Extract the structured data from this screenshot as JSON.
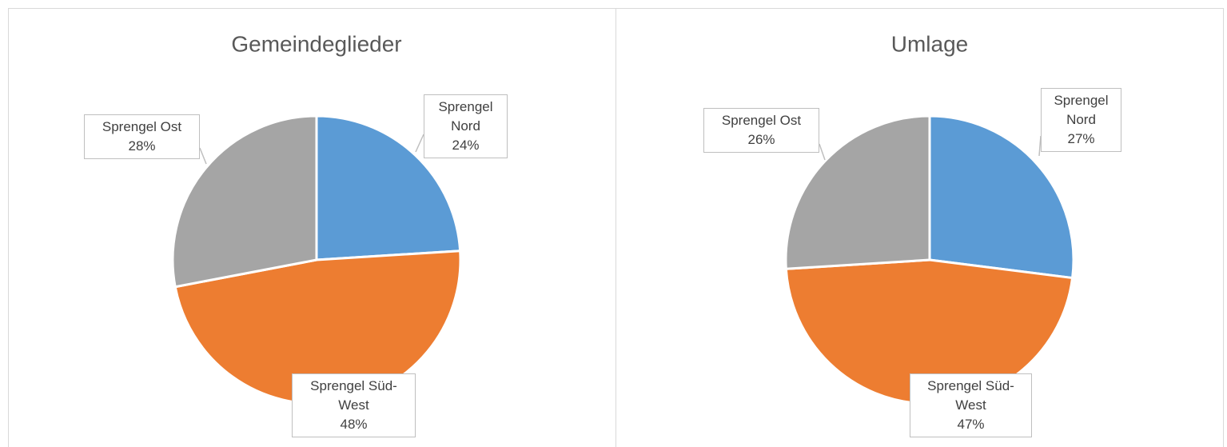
{
  "chart_data": [
    {
      "type": "pie",
      "title": "Gemeindeglieder",
      "categories": [
        "Sprengel Nord",
        "Sprengel Süd-West",
        "Sprengel Ost"
      ],
      "values": [
        24,
        48,
        28
      ],
      "value_labels": [
        "24%",
        "48%",
        "28%"
      ],
      "colors": [
        "#5b9bd5",
        "#ed7d31",
        "#a5a5a5"
      ]
    },
    {
      "type": "pie",
      "title": "Umlage",
      "categories": [
        "Sprengel Nord",
        "Sprengel Süd-West",
        "Sprengel Ost"
      ],
      "values": [
        27,
        47,
        26
      ],
      "value_labels": [
        "27%",
        "47%",
        "26%"
      ],
      "colors": [
        "#5b9bd5",
        "#ed7d31",
        "#a5a5a5"
      ]
    }
  ]
}
